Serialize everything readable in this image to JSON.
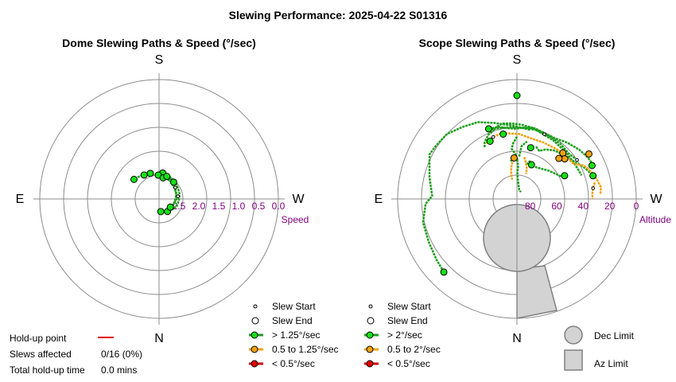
{
  "title": "Slewing Performance: 2025-04-22 S01316",
  "colors": {
    "fast": "#1e9e1e",
    "fast_fill": "#16e016",
    "mid": "#f2a20c",
    "mid_fill": "#f2a20c",
    "slow": "#d40000",
    "slow_fill": "#e00000",
    "ring": "#8c8c8c",
    "axis_label": "#800080",
    "limit_fill": "#d3d3d3",
    "limit_stroke": "#808080",
    "holdup": "#e00000"
  },
  "chart_data": [
    {
      "type": "polar",
      "title": "Dome Slewing Paths & Speed (°/sec)",
      "compass": {
        "top": "S",
        "bottom": "N",
        "left": "E",
        "right": "W"
      },
      "radial_label": "Speed",
      "radial_ticks": [
        "2.5",
        "2.0",
        "1.5",
        "1.0",
        "0.5",
        "0.0"
      ],
      "rlim": [
        0.0,
        3.0
      ],
      "series": [
        {
          "speed_class": "fast",
          "points": [
            [
              195,
              2.42
            ],
            [
              205,
              2.45
            ],
            [
              215,
              2.48
            ],
            [
              225,
              2.5
            ],
            [
              238,
              2.52
            ],
            [
              252,
              2.55
            ],
            [
              270,
              2.56
            ],
            [
              285,
              2.6
            ],
            [
              300,
              2.62
            ],
            [
              318,
              2.64
            ],
            [
              335,
              2.66
            ],
            [
              350,
              2.68
            ]
          ]
        },
        {
          "speed_class": "fast",
          "points": [
            [
              190,
              2.35
            ],
            [
              205,
              2.38
            ],
            [
              222,
              2.4
            ],
            [
              240,
              2.45
            ],
            [
              258,
              2.47
            ],
            [
              275,
              2.5
            ],
            [
              292,
              2.52
            ],
            [
              310,
              2.58
            ],
            [
              325,
              2.62
            ]
          ]
        },
        {
          "speed_class": "fast",
          "points": [
            [
              180,
              2.4
            ],
            [
              196,
              2.44
            ],
            [
              212,
              2.47
            ],
            [
              230,
              2.52
            ],
            [
              250,
              2.54
            ],
            [
              268,
              2.58
            ],
            [
              288,
              2.61
            ],
            [
              305,
              2.65
            ]
          ]
        },
        {
          "speed_class": "fast",
          "points": [
            [
              150,
              2.3
            ],
            [
              160,
              2.35
            ],
            [
              170,
              2.38
            ],
            [
              180,
              2.42
            ],
            [
              190,
              2.46
            ]
          ]
        },
        {
          "speed_class": "fast",
          "points": [
            [
              130,
              2.2
            ],
            [
              140,
              2.25
            ],
            [
              150,
              2.28
            ],
            [
              160,
              2.32
            ]
          ]
        },
        {
          "speed_class": "fast",
          "points": [
            [
              200,
              2.4
            ],
            [
              210,
              2.42
            ],
            [
              220,
              2.44
            ]
          ]
        }
      ],
      "endpoints": [
        {
          "az": 194,
          "speed": 2.41,
          "kind": "end"
        },
        {
          "az": 352,
          "speed": 2.68,
          "kind": "end"
        },
        {
          "az": 188,
          "speed": 2.34,
          "kind": "end"
        },
        {
          "az": 326,
          "speed": 2.62,
          "kind": "end"
        },
        {
          "az": 178,
          "speed": 2.4,
          "kind": "end"
        },
        {
          "az": 306,
          "speed": 2.65,
          "kind": "end"
        },
        {
          "az": 148,
          "speed": 2.29,
          "kind": "end"
        },
        {
          "az": 191,
          "speed": 2.46,
          "kind": "end"
        },
        {
          "az": 128,
          "speed": 2.2,
          "kind": "end"
        },
        {
          "az": 161,
          "speed": 2.32,
          "kind": "end"
        },
        {
          "az": 199,
          "speed": 2.4,
          "kind": "end"
        },
        {
          "az": 221,
          "speed": 2.44,
          "kind": "end"
        },
        {
          "az": 235,
          "speed": 2.5,
          "kind": "start"
        },
        {
          "az": 262,
          "speed": 2.52,
          "kind": "start"
        }
      ]
    },
    {
      "type": "polar",
      "title": "Scope Slewing Paths & Speed (°/sec)",
      "compass": {
        "top": "S",
        "bottom": "N",
        "left": "E",
        "right": "W"
      },
      "radial_label": "Altitude",
      "radial_ticks": [
        "80",
        "60",
        "40",
        "20",
        "0"
      ],
      "rlim": [
        90,
        0
      ],
      "series": [
        {
          "speed_class": "fast",
          "points": [
            [
              180,
              43
            ],
            [
              176,
              48
            ],
            [
              174,
              52
            ],
            [
              178,
              56
            ],
            [
              181,
              62
            ],
            [
              182,
              66
            ],
            [
              181,
              70
            ],
            [
              182,
              74
            ],
            [
              186,
              79
            ],
            [
              195,
              83
            ],
            [
              210,
              84
            ]
          ]
        },
        {
          "speed_class": "fast",
          "points": [
            [
              200,
              48
            ],
            [
              205,
              50
            ],
            [
              210,
              47
            ],
            [
              217,
              44
            ],
            [
              225,
              42
            ],
            [
              232,
              40
            ],
            [
              238,
              38
            ],
            [
              243,
              35
            ],
            [
              247,
              33
            ],
            [
              251,
              31
            ],
            [
              255,
              30
            ]
          ]
        },
        {
          "speed_class": "fast",
          "points": [
            [
              158,
              33
            ],
            [
              166,
              34
            ],
            [
              172,
              36
            ],
            [
              178,
              37
            ],
            [
              186,
              36
            ],
            [
              194,
              35
            ],
            [
              202,
              36
            ],
            [
              212,
              36
            ],
            [
              222,
              33
            ],
            [
              232,
              30
            ],
            [
              240,
              28
            ],
            [
              246,
              27
            ]
          ]
        },
        {
          "speed_class": "fast",
          "points": [
            [
              159,
              34
            ],
            [
              167,
              35
            ],
            [
              176,
              36
            ],
            [
              186,
              36
            ],
            [
              197,
              36
            ],
            [
              208,
              37
            ],
            [
              218,
              37
            ],
            [
              229,
              38
            ],
            [
              237,
              36
            ]
          ]
        },
        {
          "speed_class": "fast",
          "points": [
            [
              148,
              44
            ],
            [
              150,
              41
            ],
            [
              153,
              39
            ],
            [
              156,
              37
            ],
            [
              160,
              36
            ],
            [
              163,
              34
            ],
            [
              169,
              32
            ],
            [
              176,
              33
            ],
            [
              184,
              34
            ],
            [
              192,
              35
            ],
            [
              200,
              37
            ],
            [
              212,
              38
            ],
            [
              226,
              39
            ],
            [
              238,
              39
            ],
            [
              250,
              38
            ]
          ]
        },
        {
          "speed_class": "fast",
          "points": [
            [
              195,
              63
            ],
            [
              199,
              60
            ],
            [
              203,
              62
            ],
            [
              212,
              62
            ],
            [
              228,
              58
            ],
            [
              244,
              52
            ]
          ]
        },
        {
          "speed_class": "fast",
          "points": [
            [
              45,
              12
            ],
            [
              53,
              14
            ],
            [
              64,
              16
            ],
            [
              76,
              17
            ],
            [
              87,
              21
            ],
            [
              92,
              26
            ],
            [
              104,
              22
            ],
            [
              117,
              16
            ],
            [
              124,
              17
            ],
            [
              133,
              18
            ],
            [
              143,
              22
            ],
            [
              153,
              25
            ],
            [
              163,
              30
            ],
            [
              178,
              35
            ],
            [
              191,
              37
            ]
          ]
        },
        {
          "speed_class": "fast",
          "points": [
            [
              183,
              58
            ],
            [
              185,
              50
            ],
            [
              190,
              46
            ]
          ]
        },
        {
          "speed_class": "fast",
          "points": [
            [
              170,
              61
            ],
            [
              176,
              60
            ],
            [
              182,
              60
            ]
          ]
        },
        {
          "speed_class": "mid",
          "points": [
            [
              151,
              42
            ],
            [
              159,
              40
            ],
            [
              167,
              39
            ],
            [
              182,
              41
            ],
            [
              193,
              43
            ],
            [
              205,
              43
            ],
            [
              218,
              42
            ],
            [
              225,
              41
            ],
            [
              231,
              43
            ]
          ]
        },
        {
          "speed_class": "mid",
          "points": [
            [
              229,
              40
            ],
            [
              230,
              43
            ],
            [
              232,
              41
            ],
            [
              237,
              40
            ],
            [
              240,
              38
            ],
            [
              243,
              34
            ],
            [
              246,
              32
            ],
            [
              251,
              30
            ],
            [
              256,
              28
            ],
            [
              262,
              26
            ],
            [
              267,
              27
            ]
          ]
        },
        {
          "speed_class": "mid",
          "points": [
            [
              176,
              60
            ],
            [
              172,
              63
            ],
            [
              169,
              67
            ],
            [
              167,
              71
            ],
            [
              166,
              75
            ]
          ]
        },
        {
          "speed_class": "mid",
          "points": [
            [
              190,
              58
            ],
            [
              194,
              62
            ],
            [
              198,
              66
            ],
            [
              200,
              70
            ]
          ]
        },
        {
          "speed_class": "mid",
          "points": [
            [
              258,
              30
            ],
            [
              262,
              32
            ],
            [
              266,
              33
            ],
            [
              270,
              33
            ]
          ]
        }
      ],
      "endpoints": [
        {
          "az": 180,
          "speed": 12.0,
          "kind": "end",
          "cls": "fast"
        },
        {
          "az": 155,
          "speed": 42.0,
          "kind": "end",
          "cls": "fast"
        },
        {
          "az": 158,
          "speed": 33.0,
          "kind": "end",
          "cls": "fast"
        },
        {
          "az": 168,
          "speed": 40.0,
          "kind": "end",
          "cls": "fast"
        },
        {
          "az": 195,
          "speed": 50.0,
          "kind": "end",
          "cls": "fast"
        },
        {
          "az": 246,
          "speed": 28.0,
          "kind": "end",
          "cls": "fast"
        },
        {
          "az": 253,
          "speed": 30.0,
          "kind": "end",
          "cls": "fast"
        },
        {
          "az": 244,
          "speed": 50.0,
          "kind": "end",
          "cls": "fast"
        },
        {
          "az": 203,
          "speed": 62.0,
          "kind": "end",
          "cls": "fast"
        },
        {
          "az": 45,
          "speed": 12.0,
          "kind": "end",
          "cls": "fast"
        },
        {
          "az": 225,
          "speed": 41.0,
          "kind": "end",
          "cls": "mid"
        },
        {
          "az": 230,
          "speed": 43.0,
          "kind": "end",
          "cls": "mid"
        },
        {
          "az": 238,
          "speed": 26.0,
          "kind": "end",
          "cls": "mid"
        },
        {
          "az": 176,
          "speed": 59.0,
          "kind": "end",
          "cls": "mid"
        },
        {
          "az": 226,
          "speed": 46.0,
          "kind": "end",
          "cls": "mid"
        },
        {
          "az": 159,
          "speed": 40.0,
          "kind": "start",
          "cls": "fast"
        },
        {
          "az": 237,
          "speed": 36.0,
          "kind": "start",
          "cls": "fast"
        },
        {
          "az": 262,
          "speed": 32.0,
          "kind": "start",
          "cls": "fast"
        },
        {
          "az": 203,
          "speed": 37.0,
          "kind": "start",
          "cls": "fast"
        }
      ],
      "limits": {
        "dec_limit_radius_alt": 72,
        "az_limit_span": [
          -15,
          15
        ]
      }
    }
  ],
  "dome_legend": {
    "items": [
      "Slew Start",
      "Slew End",
      "> 1.25°/sec",
      "0.5 to 1.25°/sec",
      "< 0.5°/sec"
    ]
  },
  "scope_legend": {
    "items": [
      "Slew Start",
      "Slew End",
      "> 2°/sec",
      "0.5 to 2°/sec",
      "< 0.5°/sec"
    ]
  },
  "limits_legend": {
    "dec_label": "Dec Limit",
    "az_label": "Az Limit"
  },
  "holdup": {
    "point_label": "Hold-up point",
    "slews_label": "Slews affected",
    "slews_value": "0/16 (0%)",
    "time_label": "Total hold-up time",
    "time_value": "0.0 mins"
  }
}
